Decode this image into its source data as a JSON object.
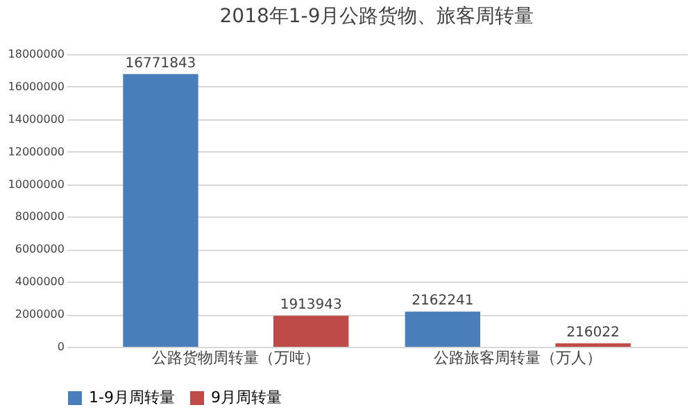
{
  "chart_data": {
    "type": "bar",
    "title": "2018年1-9月公路货物、旅客周转量",
    "categories": [
      "公路货物周转量（万吨）",
      "公路旅客周转量（万人）"
    ],
    "series": [
      {
        "name": "1-9月周转量",
        "color": "#4a7ebb",
        "values": [
          16771843,
          2162241
        ]
      },
      {
        "name": "9月周转量",
        "color": "#be4b48",
        "values": [
          1913943,
          216022
        ]
      }
    ],
    "ylim": [
      0,
      18000000
    ],
    "yticks": [
      0,
      2000000,
      4000000,
      6000000,
      8000000,
      10000000,
      12000000,
      14000000,
      16000000,
      18000000
    ],
    "grid": "y",
    "legend": "bottom",
    "data_labels": true
  }
}
